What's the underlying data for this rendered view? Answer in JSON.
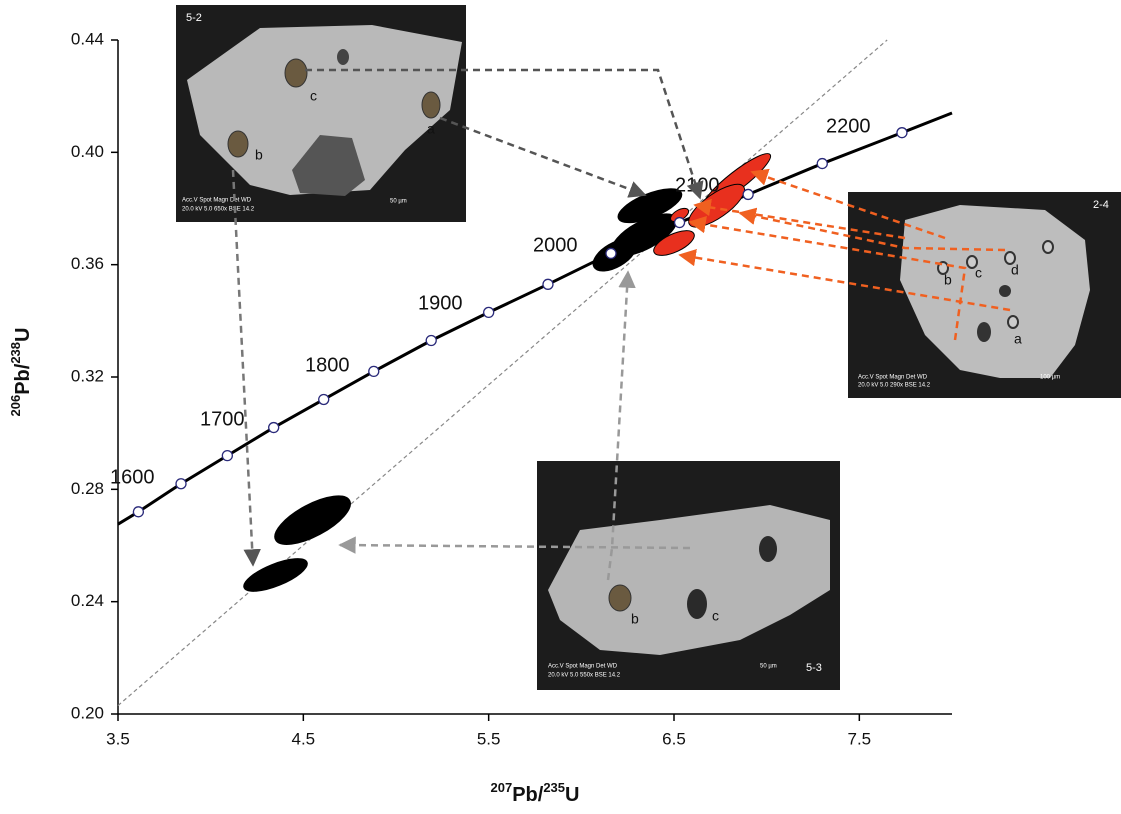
{
  "chart_data": {
    "type": "scatter",
    "xlabel": [
      "207",
      "Pb/",
      "235",
      "U"
    ],
    "ylabel": [
      "206",
      "Pb/",
      "238",
      "U"
    ],
    "xlim": [
      3.5,
      8.0
    ],
    "xticks": [
      3.5,
      4.5,
      5.5,
      6.5,
      7.5
    ],
    "ylim": [
      0.2,
      0.44
    ],
    "yticks": [
      {
        "value": 0.2,
        "label": "0.20"
      },
      0.24,
      0.28,
      0.32,
      0.36,
      {
        "value": 0.4,
        "label": "0.40"
      },
      0.44
    ],
    "concordia": {
      "color": "#000000",
      "x": [
        3.5,
        3.61,
        3.84,
        4.09,
        4.34,
        4.61,
        4.88,
        5.19,
        5.5,
        5.82,
        6.16,
        6.53,
        6.9,
        7.3,
        7.73,
        8.0
      ],
      "y": [
        0.2676,
        0.272,
        0.282,
        0.292,
        0.302,
        0.312,
        0.322,
        0.333,
        0.343,
        0.353,
        0.364,
        0.375,
        0.385,
        0.396,
        0.407,
        0.414
      ]
    },
    "concordia_markers": {
      "color": "#2a2a7a",
      "x": [
        3.61,
        3.84,
        4.09,
        4.34,
        4.61,
        4.88,
        5.19,
        5.5,
        5.82,
        6.16,
        6.53,
        6.9,
        7.3,
        7.73
      ],
      "y": [
        0.272,
        0.282,
        0.292,
        0.302,
        0.312,
        0.322,
        0.333,
        0.343,
        0.353,
        0.364,
        0.375,
        0.385,
        0.396,
        0.407
      ]
    },
    "age_labels": [
      "1600",
      "1700",
      "1800",
      "1900",
      "2000",
      "2100",
      "2200"
    ],
    "discordia": {
      "color": "#888888",
      "x": [
        3.5,
        7.65
      ],
      "y": [
        0.203,
        0.44
      ]
    },
    "series": [
      {
        "color": "#000000",
        "x": [
          6.37,
          6.34,
          6.18,
          4.55,
          4.35
        ],
        "values": [
          0.381,
          0.3706,
          0.3634,
          0.269,
          0.2495
        ]
      },
      {
        "color": "#e8301e",
        "x": [
          6.84,
          6.73,
          6.53,
          6.5
        ],
        "values": [
          0.39,
          0.381,
          0.3777,
          0.3677
        ]
      }
    ]
  },
  "insets": [
    {
      "label": "5-2",
      "spots": [
        "c",
        "a",
        "b"
      ],
      "info": [
        "Acc.V  Spot Magn   Det  WD",
        "20.0 kV 5.0  650x   BSE 14.2",
        "50 µm"
      ]
    },
    {
      "label": "2-4",
      "spots": [
        "b",
        "c",
        "d",
        "a"
      ],
      "info": [
        "Acc.V  Spot Magn   Det  WD",
        "20.0 kV 5.0  290x   BSE 14.2",
        "100 µm"
      ]
    },
    {
      "label": "5-3",
      "spots": [
        "b",
        "c"
      ],
      "info": [
        "Acc.V  Spot Magn   Det  WD",
        "20.0 kV 5.0  550x   BSE 14.2",
        "50 µm"
      ]
    }
  ]
}
